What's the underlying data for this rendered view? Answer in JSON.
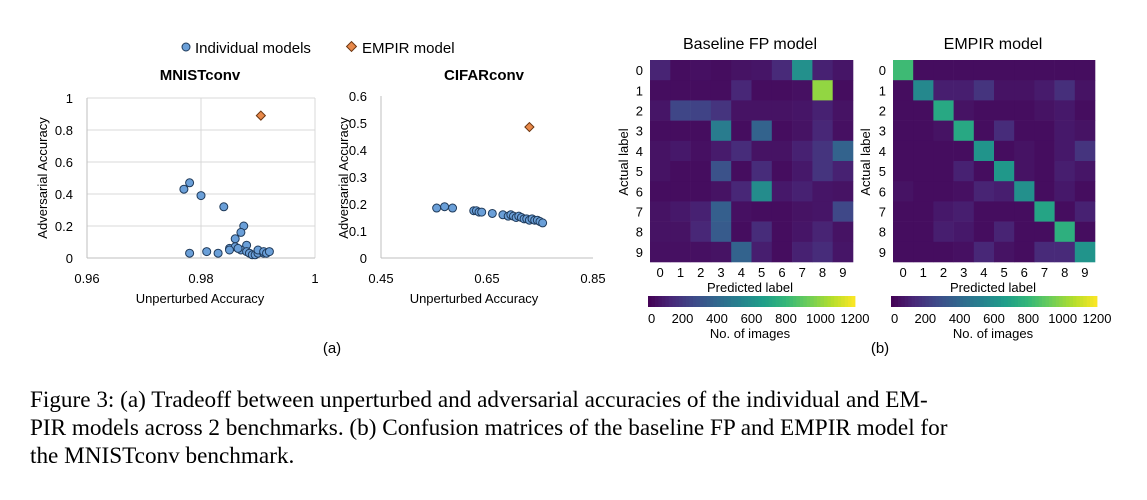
{
  "legend": {
    "individual": "Individual models",
    "empir": "EMPIR model",
    "individual_color": "#6a9fd8",
    "empir_color": "#e8894a"
  },
  "panel_a_label": "(a)",
  "panel_b_label": "(b)",
  "chart_data": [
    {
      "type": "scatter",
      "title": "MNISTconv",
      "xlabel": "Unperturbed Accuracy",
      "ylabel": "Adversarial Accuracy",
      "xlim": [
        0.96,
        1.0
      ],
      "ylim": [
        0,
        1
      ],
      "xticks": [
        "0.96",
        "0.98",
        "1"
      ],
      "yticks": [
        "0",
        "0.2",
        "0.4",
        "0.6",
        "0.8",
        "1"
      ],
      "grid": true,
      "series": [
        {
          "name": "Individual models",
          "x": [
            0.977,
            0.978,
            0.98,
            0.978,
            0.981,
            0.983,
            0.985,
            0.9875,
            0.987,
            0.986,
            0.988,
            0.986,
            0.987,
            0.988,
            0.9885,
            0.989,
            0.9895,
            0.99,
            0.99,
            0.991,
            0.991,
            0.9915,
            0.992,
            0.984,
            0.985,
            0.9865
          ],
          "y": [
            0.43,
            0.47,
            0.39,
            0.03,
            0.04,
            0.03,
            0.06,
            0.2,
            0.16,
            0.12,
            0.08,
            0.07,
            0.05,
            0.04,
            0.03,
            0.02,
            0.02,
            0.03,
            0.05,
            0.03,
            0.04,
            0.03,
            0.04,
            0.32,
            0.05,
            0.06
          ]
        },
        {
          "name": "EMPIR model",
          "x": [
            0.9905
          ],
          "y": [
            0.89
          ]
        }
      ]
    },
    {
      "type": "scatter",
      "title": "CIFARconv",
      "xlabel": "Unperturbed Accuracy",
      "ylabel": "Adversarial Accuracy",
      "xlim": [
        0.45,
        0.85
      ],
      "ylim": [
        0,
        0.6
      ],
      "xticks": [
        "0.45",
        "0.65",
        "0.85"
      ],
      "yticks": [
        "0",
        "0.1",
        "0.2",
        "0.3",
        "0.4",
        "0.5",
        "0.6"
      ],
      "grid": false,
      "series": [
        {
          "name": "Individual models",
          "x": [
            0.555,
            0.57,
            0.585,
            0.625,
            0.63,
            0.635,
            0.64,
            0.66,
            0.68,
            0.69,
            0.695,
            0.7,
            0.705,
            0.71,
            0.715,
            0.72,
            0.725,
            0.73,
            0.735,
            0.74,
            0.745,
            0.75,
            0.755
          ],
          "y": [
            0.185,
            0.19,
            0.185,
            0.175,
            0.175,
            0.17,
            0.17,
            0.165,
            0.16,
            0.155,
            0.16,
            0.155,
            0.15,
            0.155,
            0.15,
            0.145,
            0.145,
            0.14,
            0.145,
            0.14,
            0.14,
            0.135,
            0.13
          ]
        },
        {
          "name": "EMPIR model",
          "x": [
            0.73
          ],
          "y": [
            0.485
          ]
        }
      ]
    },
    {
      "type": "heatmap",
      "title": "Baseline FP model",
      "xlabel": "Predicted label",
      "ylabel": "Actual label",
      "x": [
        "0",
        "1",
        "2",
        "3",
        "4",
        "5",
        "6",
        "7",
        "8",
        "9"
      ],
      "y": [
        "0",
        "1",
        "2",
        "3",
        "4",
        "5",
        "6",
        "7",
        "8",
        "9"
      ],
      "values": [
        [
          120,
          40,
          50,
          40,
          60,
          70,
          140,
          600,
          110,
          70
        ],
        [
          40,
          40,
          40,
          40,
          130,
          40,
          40,
          50,
          1000,
          40
        ],
        [
          70,
          250,
          240,
          180,
          60,
          60,
          60,
          70,
          110,
          60
        ],
        [
          40,
          40,
          40,
          500,
          40,
          380,
          40,
          60,
          130,
          50
        ],
        [
          60,
          80,
          50,
          90,
          150,
          60,
          60,
          110,
          180,
          380
        ],
        [
          60,
          40,
          40,
          300,
          40,
          150,
          40,
          80,
          180,
          110
        ],
        [
          40,
          40,
          40,
          60,
          130,
          580,
          80,
          110,
          70,
          60
        ],
        [
          60,
          80,
          110,
          360,
          50,
          40,
          40,
          60,
          70,
          260
        ],
        [
          60,
          60,
          130,
          340,
          40,
          150,
          40,
          70,
          120,
          60
        ],
        [
          50,
          50,
          50,
          60,
          380,
          100,
          40,
          110,
          150,
          70
        ]
      ],
      "colorbar": {
        "label": "No. of images",
        "min": 0,
        "max": 1200,
        "ticks": [
          "0",
          "200",
          "400",
          "600",
          "800",
          "1000",
          "1200"
        ]
      }
    },
    {
      "type": "heatmap",
      "title": "EMPIR model",
      "xlabel": "Predicted label",
      "ylabel": "Actual label",
      "x": [
        "0",
        "1",
        "2",
        "3",
        "4",
        "5",
        "6",
        "7",
        "8",
        "9"
      ],
      "y": [
        "0",
        "1",
        "2",
        "3",
        "4",
        "5",
        "6",
        "7",
        "8",
        "9"
      ],
      "values": [
        [
          820,
          40,
          40,
          40,
          40,
          40,
          40,
          40,
          40,
          40
        ],
        [
          40,
          560,
          100,
          100,
          180,
          60,
          60,
          90,
          160,
          60
        ],
        [
          40,
          40,
          720,
          60,
          40,
          40,
          40,
          60,
          80,
          40
        ],
        [
          40,
          40,
          60,
          720,
          40,
          150,
          40,
          40,
          80,
          60
        ],
        [
          40,
          40,
          40,
          40,
          620,
          40,
          60,
          40,
          80,
          180
        ],
        [
          40,
          40,
          40,
          110,
          40,
          640,
          60,
          40,
          100,
          70
        ],
        [
          60,
          40,
          40,
          50,
          120,
          100,
          600,
          40,
          80,
          40
        ],
        [
          40,
          40,
          80,
          100,
          40,
          40,
          40,
          700,
          40,
          110
        ],
        [
          40,
          40,
          100,
          80,
          40,
          120,
          40,
          40,
          760,
          40
        ],
        [
          40,
          40,
          40,
          50,
          130,
          60,
          40,
          140,
          140,
          620
        ]
      ],
      "colorbar": {
        "label": "No. of images",
        "min": 0,
        "max": 1200,
        "ticks": [
          "0",
          "200",
          "400",
          "600",
          "800",
          "1000",
          "1200"
        ]
      }
    }
  ],
  "caption": {
    "line1": "Figure 3: (a) Tradeoff between unperturbed and adversarial accuracies of the individual and EM-",
    "line2": "PIR models across 2 benchmarks. (b) Confusion matrices of the baseline FP and EMPIR model for",
    "line3": "the MNISTconv benchmark."
  }
}
